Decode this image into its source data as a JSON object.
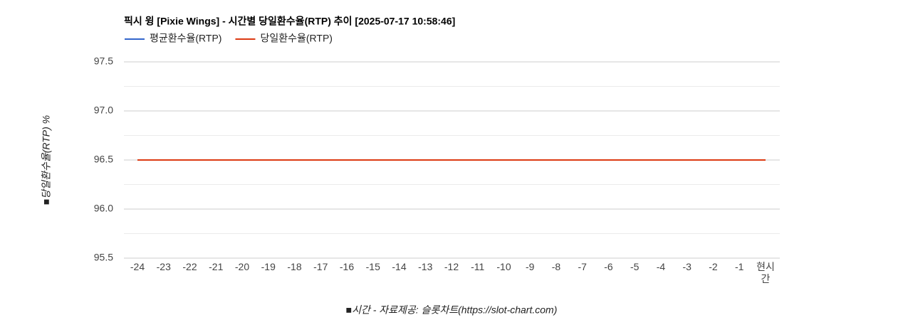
{
  "chart_data": {
    "type": "line",
    "title": "픽시 윙 [Pixie Wings] - 시간별 당일환수율(RTP) 추이 [2025-07-17 10:58:46]",
    "y_label": "■당일환수율(RTP) %",
    "x_label": "■시간 - 자료제공: 슬롯차트(https://slot-chart.com)",
    "categories": [
      "-24",
      "-23",
      "-22",
      "-21",
      "-20",
      "-19",
      "-18",
      "-17",
      "-16",
      "-15",
      "-14",
      "-13",
      "-12",
      "-11",
      "-10",
      "-9",
      "-8",
      "-7",
      "-6",
      "-5",
      "-4",
      "-3",
      "-2",
      "-1",
      "현시간"
    ],
    "series": [
      {
        "name": "평균환수율(RTP)",
        "color": "#3366cc",
        "values": [
          96.5,
          96.5,
          96.5,
          96.5,
          96.5,
          96.5,
          96.5,
          96.5,
          96.5,
          96.5,
          96.5,
          96.5,
          96.5,
          96.5,
          96.5,
          96.5,
          96.5,
          96.5,
          96.5,
          96.5,
          96.5,
          96.5,
          96.5,
          96.5,
          96.5
        ]
      },
      {
        "name": "당일환수율(RTP)",
        "color": "#dc3912",
        "values": [
          96.5,
          96.5,
          96.5,
          96.5,
          96.5,
          96.5,
          96.5,
          96.5,
          96.5,
          96.5,
          96.5,
          96.5,
          96.5,
          96.5,
          96.5,
          96.5,
          96.5,
          96.5,
          96.5,
          96.5,
          96.5,
          96.5,
          96.5,
          96.5,
          96.5
        ]
      }
    ],
    "ylim": [
      95.5,
      97.5
    ],
    "yticks": [
      95.5,
      {
        "value": 96,
        "label": "96.0"
      },
      96.5,
      {
        "value": 97,
        "label": "97.0"
      },
      97.5
    ],
    "minor_yticks": [
      95.75,
      96.25,
      96.75,
      97.25
    ],
    "grid": true
  }
}
